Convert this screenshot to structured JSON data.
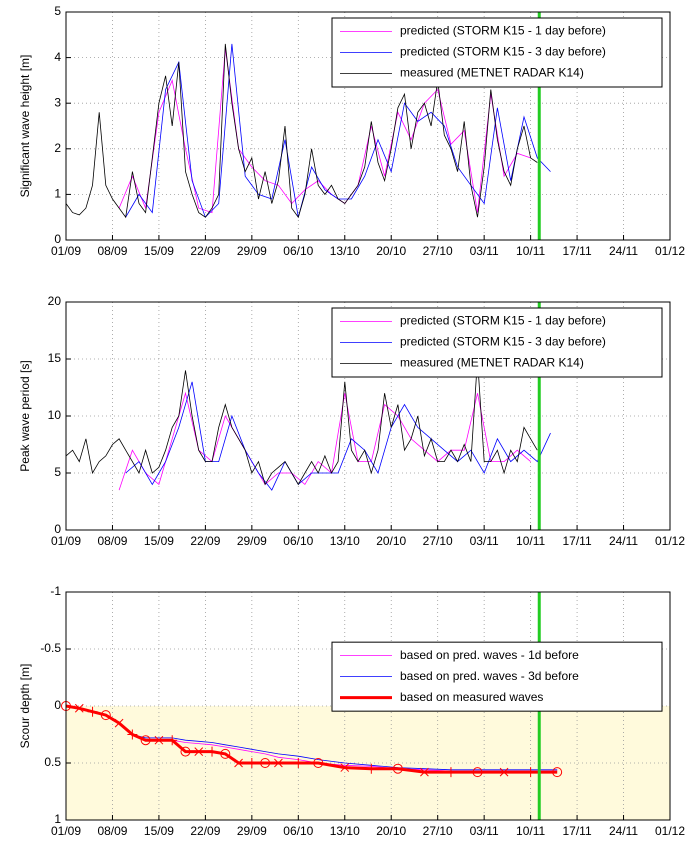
{
  "chart_data": [
    {
      "type": "line",
      "ylabel": "Significant wave height [m]",
      "xlim": [
        0,
        91
      ],
      "ylim": [
        0,
        5
      ],
      "yticks": [
        0,
        1,
        2,
        3,
        4,
        5
      ],
      "xticks": [
        {
          "value": 0,
          "label": "01/09"
        },
        {
          "value": 7,
          "label": "08/09"
        },
        {
          "value": 14,
          "label": "15/09"
        },
        {
          "value": 21,
          "label": "22/09"
        },
        {
          "value": 28,
          "label": "29/09"
        },
        {
          "value": 35,
          "label": "06/10"
        },
        {
          "value": 42,
          "label": "13/10"
        },
        {
          "value": 49,
          "label": "20/10"
        },
        {
          "value": 56,
          "label": "27/10"
        },
        {
          "value": 63,
          "label": "03/11"
        },
        {
          "value": 70,
          "label": "10/11"
        },
        {
          "value": 77,
          "label": "17/11"
        },
        {
          "value": 84,
          "label": "24/11"
        },
        {
          "value": 91,
          "label": "01/12"
        }
      ],
      "grid": true,
      "legend": "upper right",
      "vline_x": 71.3,
      "vline_color": "#22cc22",
      "series": [
        {
          "name": "predicted (STORM K15 - 1 day before)",
          "color": "#ff00ff",
          "x": [
            8,
            10,
            12,
            14,
            16,
            18,
            20,
            22,
            24,
            26,
            28,
            30,
            32,
            34,
            36,
            38,
            40,
            42,
            44,
            46,
            48,
            50,
            52,
            54,
            56,
            58,
            60,
            62,
            64,
            66,
            68,
            70
          ],
          "values": [
            0.7,
            1.4,
            0.7,
            2.8,
            3.5,
            2.0,
            0.7,
            0.6,
            4.2,
            2.0,
            1.6,
            1.3,
            1.2,
            0.8,
            1.1,
            1.3,
            1.0,
            0.8,
            1.2,
            2.5,
            1.4,
            2.8,
            2.2,
            3.0,
            3.3,
            2.1,
            2.4,
            0.6,
            3.2,
            1.4,
            1.9,
            1.8
          ]
        },
        {
          "name": "predicted (STORM K15 - 3 day before)",
          "color": "#0000ff",
          "x": [
            9,
            11,
            13,
            15,
            17,
            19,
            21,
            23,
            25,
            27,
            29,
            31,
            33,
            35,
            37,
            39,
            41,
            43,
            45,
            47,
            49,
            51,
            53,
            55,
            57,
            59,
            61,
            63,
            65,
            67,
            69,
            71,
            73
          ],
          "values": [
            0.5,
            1.0,
            0.6,
            3.3,
            3.9,
            1.3,
            0.5,
            0.8,
            4.3,
            1.4,
            1.0,
            0.9,
            2.2,
            0.5,
            1.6,
            1.1,
            0.9,
            0.9,
            1.4,
            2.2,
            1.5,
            3.0,
            2.6,
            2.8,
            2.5,
            1.6,
            1.2,
            0.8,
            2.9,
            1.3,
            2.7,
            1.8,
            1.5
          ]
        },
        {
          "name": "measured (METNET RADAR K14)",
          "color": "#000000",
          "x": [
            0,
            1,
            2,
            3,
            4,
            5,
            6,
            7,
            8,
            9,
            10,
            11,
            12,
            13,
            14,
            15,
            16,
            17,
            18,
            19,
            20,
            21,
            22,
            23,
            24,
            25,
            26,
            27,
            28,
            29,
            30,
            31,
            32,
            33,
            34,
            35,
            36,
            37,
            38,
            39,
            40,
            41,
            42,
            43,
            44,
            45,
            46,
            47,
            48,
            49,
            50,
            51,
            52,
            53,
            54,
            55,
            56,
            57,
            58,
            59,
            60,
            61,
            62,
            63,
            64,
            65,
            66,
            67,
            68,
            69,
            70,
            71
          ],
          "values": [
            0.8,
            0.6,
            0.55,
            0.7,
            1.2,
            2.8,
            1.2,
            0.9,
            0.7,
            0.5,
            1.5,
            0.8,
            0.6,
            1.8,
            3.0,
            3.6,
            2.5,
            3.9,
            1.5,
            1.0,
            0.6,
            0.5,
            0.7,
            1.0,
            4.3,
            3.0,
            2.0,
            1.5,
            1.8,
            0.9,
            1.5,
            0.8,
            1.3,
            2.5,
            0.7,
            0.5,
            1.0,
            2.0,
            1.2,
            1.0,
            1.2,
            0.9,
            0.8,
            1.0,
            1.2,
            1.6,
            2.6,
            1.7,
            1.3,
            2.0,
            2.9,
            3.2,
            2.0,
            2.8,
            3.0,
            2.5,
            3.5,
            2.3,
            2.0,
            1.5,
            2.6,
            1.2,
            0.5,
            1.6,
            3.3,
            2.2,
            1.5,
            1.2,
            2.0,
            2.5,
            1.8,
            1.7
          ]
        }
      ]
    },
    {
      "type": "line",
      "ylabel": "Peak wave period [s]",
      "xlim": [
        0,
        91
      ],
      "ylim": [
        0,
        20
      ],
      "yticks": [
        0,
        5,
        10,
        15,
        20
      ],
      "xticks": [
        {
          "value": 0,
          "label": "01/09"
        },
        {
          "value": 7,
          "label": "08/09"
        },
        {
          "value": 14,
          "label": "15/09"
        },
        {
          "value": 21,
          "label": "22/09"
        },
        {
          "value": 28,
          "label": "29/09"
        },
        {
          "value": 35,
          "label": "06/10"
        },
        {
          "value": 42,
          "label": "13/10"
        },
        {
          "value": 49,
          "label": "20/10"
        },
        {
          "value": 56,
          "label": "27/10"
        },
        {
          "value": 63,
          "label": "03/11"
        },
        {
          "value": 70,
          "label": "10/11"
        },
        {
          "value": 77,
          "label": "17/11"
        },
        {
          "value": 84,
          "label": "24/11"
        },
        {
          "value": 91,
          "label": "01/12"
        }
      ],
      "grid": true,
      "legend": "upper right",
      "vline_x": 71.3,
      "vline_color": "#22cc22",
      "series": [
        {
          "name": "predicted (STORM K15 - 1 day before)",
          "color": "#ff00ff",
          "x": [
            8,
            10,
            12,
            14,
            16,
            18,
            20,
            22,
            24,
            26,
            28,
            30,
            32,
            34,
            36,
            38,
            40,
            42,
            44,
            46,
            48,
            50,
            52,
            54,
            56,
            58,
            60,
            62,
            64,
            66,
            68,
            70
          ],
          "values": [
            3.5,
            7,
            5,
            4,
            8,
            12,
            7,
            6,
            10,
            8,
            6,
            4,
            5,
            5,
            4,
            6,
            5,
            12,
            6,
            6,
            11,
            10,
            8,
            7,
            6,
            7,
            7,
            12,
            6,
            6,
            7,
            6
          ]
        },
        {
          "name": "predicted (STORM K15 - 3 day before)",
          "color": "#0000ff",
          "x": [
            9,
            11,
            13,
            15,
            17,
            19,
            21,
            23,
            25,
            27,
            29,
            31,
            33,
            35,
            37,
            39,
            41,
            43,
            45,
            47,
            49,
            51,
            53,
            55,
            57,
            59,
            61,
            63,
            65,
            67,
            69,
            71,
            73
          ],
          "values": [
            5,
            6,
            4,
            6,
            9,
            13,
            6,
            6,
            10,
            7,
            5,
            3.5,
            6,
            4,
            5,
            5,
            5,
            8,
            7,
            5,
            9,
            11,
            9,
            8,
            7,
            6,
            7,
            5,
            8,
            6,
            7,
            6,
            8.5
          ]
        },
        {
          "name": "measured (METNET RADAR K14)",
          "color": "#000000",
          "x": [
            0,
            1,
            2,
            3,
            4,
            5,
            6,
            7,
            8,
            9,
            10,
            11,
            12,
            13,
            14,
            15,
            16,
            17,
            18,
            19,
            20,
            21,
            22,
            23,
            24,
            25,
            26,
            27,
            28,
            29,
            30,
            31,
            32,
            33,
            34,
            35,
            36,
            37,
            38,
            39,
            40,
            41,
            42,
            43,
            44,
            45,
            46,
            47,
            48,
            49,
            50,
            51,
            52,
            53,
            54,
            55,
            56,
            57,
            58,
            59,
            60,
            61,
            62,
            63,
            64,
            65,
            66,
            67,
            68,
            69,
            70,
            71
          ],
          "values": [
            6.5,
            7,
            6,
            8,
            5,
            6,
            6.5,
            7.5,
            8,
            7,
            6,
            5,
            7,
            5,
            5.5,
            7,
            9,
            10,
            14,
            10,
            7,
            6,
            6,
            9,
            11,
            9,
            8,
            7,
            5,
            6,
            4,
            5,
            5.5,
            6,
            5,
            4,
            5,
            6,
            5,
            6.5,
            5,
            6,
            13,
            7,
            6,
            7,
            5,
            7,
            12,
            9,
            11,
            7,
            8,
            10,
            6.5,
            8,
            6,
            6,
            7,
            6,
            7.5,
            6,
            15,
            6,
            6,
            7,
            5,
            7,
            6,
            9,
            8,
            7
          ]
        }
      ]
    },
    {
      "type": "line",
      "ylabel": "Scour depth [m]",
      "xlim": [
        0,
        91
      ],
      "ylim": [
        -1,
        1
      ],
      "y_reversed": true,
      "yticks": [
        -1,
        -0.5,
        0,
        0.5,
        1
      ],
      "xticks": [
        {
          "value": 0,
          "label": "01/09"
        },
        {
          "value": 7,
          "label": "08/09"
        },
        {
          "value": 14,
          "label": "15/09"
        },
        {
          "value": 21,
          "label": "22/09"
        },
        {
          "value": 28,
          "label": "29/09"
        },
        {
          "value": 35,
          "label": "06/10"
        },
        {
          "value": 42,
          "label": "13/10"
        },
        {
          "value": 49,
          "label": "20/10"
        },
        {
          "value": 56,
          "label": "27/10"
        },
        {
          "value": 63,
          "label": "03/11"
        },
        {
          "value": 70,
          "label": "10/11"
        },
        {
          "value": 77,
          "label": "17/11"
        },
        {
          "value": 84,
          "label": "24/11"
        },
        {
          "value": 91,
          "label": "01/12"
        }
      ],
      "grid": true,
      "legend": "center right",
      "vline_x": 71.3,
      "vline_color": "#22cc22",
      "shade_from": 0,
      "shade_to": 1,
      "shade_color": "#fffadc",
      "series": [
        {
          "name": "based on pred. waves - 1d before",
          "color": "#ff00ff",
          "x": [
            0,
            2,
            4,
            6,
            8,
            10,
            12,
            14,
            16,
            18,
            20,
            22,
            24,
            26,
            28,
            30,
            32,
            35,
            38,
            42,
            46,
            50,
            54,
            58,
            62,
            66,
            70,
            74
          ],
          "values": [
            0,
            0.02,
            0.05,
            0.08,
            0.15,
            0.25,
            0.3,
            0.3,
            0.3,
            0.32,
            0.33,
            0.34,
            0.36,
            0.38,
            0.4,
            0.42,
            0.45,
            0.47,
            0.5,
            0.52,
            0.53,
            0.55,
            0.56,
            0.57,
            0.57,
            0.57,
            0.57,
            0.57
          ]
        },
        {
          "name": "based on pred. waves - 3d before",
          "color": "#0000ff",
          "x": [
            0,
            2,
            4,
            6,
            8,
            10,
            12,
            14,
            16,
            18,
            20,
            22,
            24,
            26,
            28,
            30,
            32,
            35,
            38,
            42,
            46,
            50,
            54,
            58,
            62,
            66,
            70,
            74
          ],
          "values": [
            0,
            0.02,
            0.05,
            0.08,
            0.15,
            0.25,
            0.28,
            0.28,
            0.28,
            0.3,
            0.31,
            0.32,
            0.34,
            0.36,
            0.38,
            0.4,
            0.42,
            0.44,
            0.47,
            0.5,
            0.52,
            0.54,
            0.55,
            0.56,
            0.56,
            0.56,
            0.56,
            0.56
          ]
        },
        {
          "name": "based on measured waves",
          "color": "#ff0000",
          "width": 3,
          "markers": true,
          "x": [
            0,
            2,
            4,
            6,
            8,
            10,
            12,
            14,
            16,
            18,
            20,
            22,
            24,
            26,
            28,
            30,
            32,
            35,
            38,
            42,
            46,
            50,
            54,
            58,
            62,
            66,
            70,
            74
          ],
          "values": [
            0,
            0.02,
            0.05,
            0.08,
            0.15,
            0.25,
            0.3,
            0.3,
            0.3,
            0.4,
            0.4,
            0.4,
            0.42,
            0.5,
            0.5,
            0.5,
            0.5,
            0.5,
            0.5,
            0.54,
            0.55,
            0.55,
            0.58,
            0.58,
            0.58,
            0.58,
            0.58,
            0.58
          ]
        }
      ]
    }
  ]
}
